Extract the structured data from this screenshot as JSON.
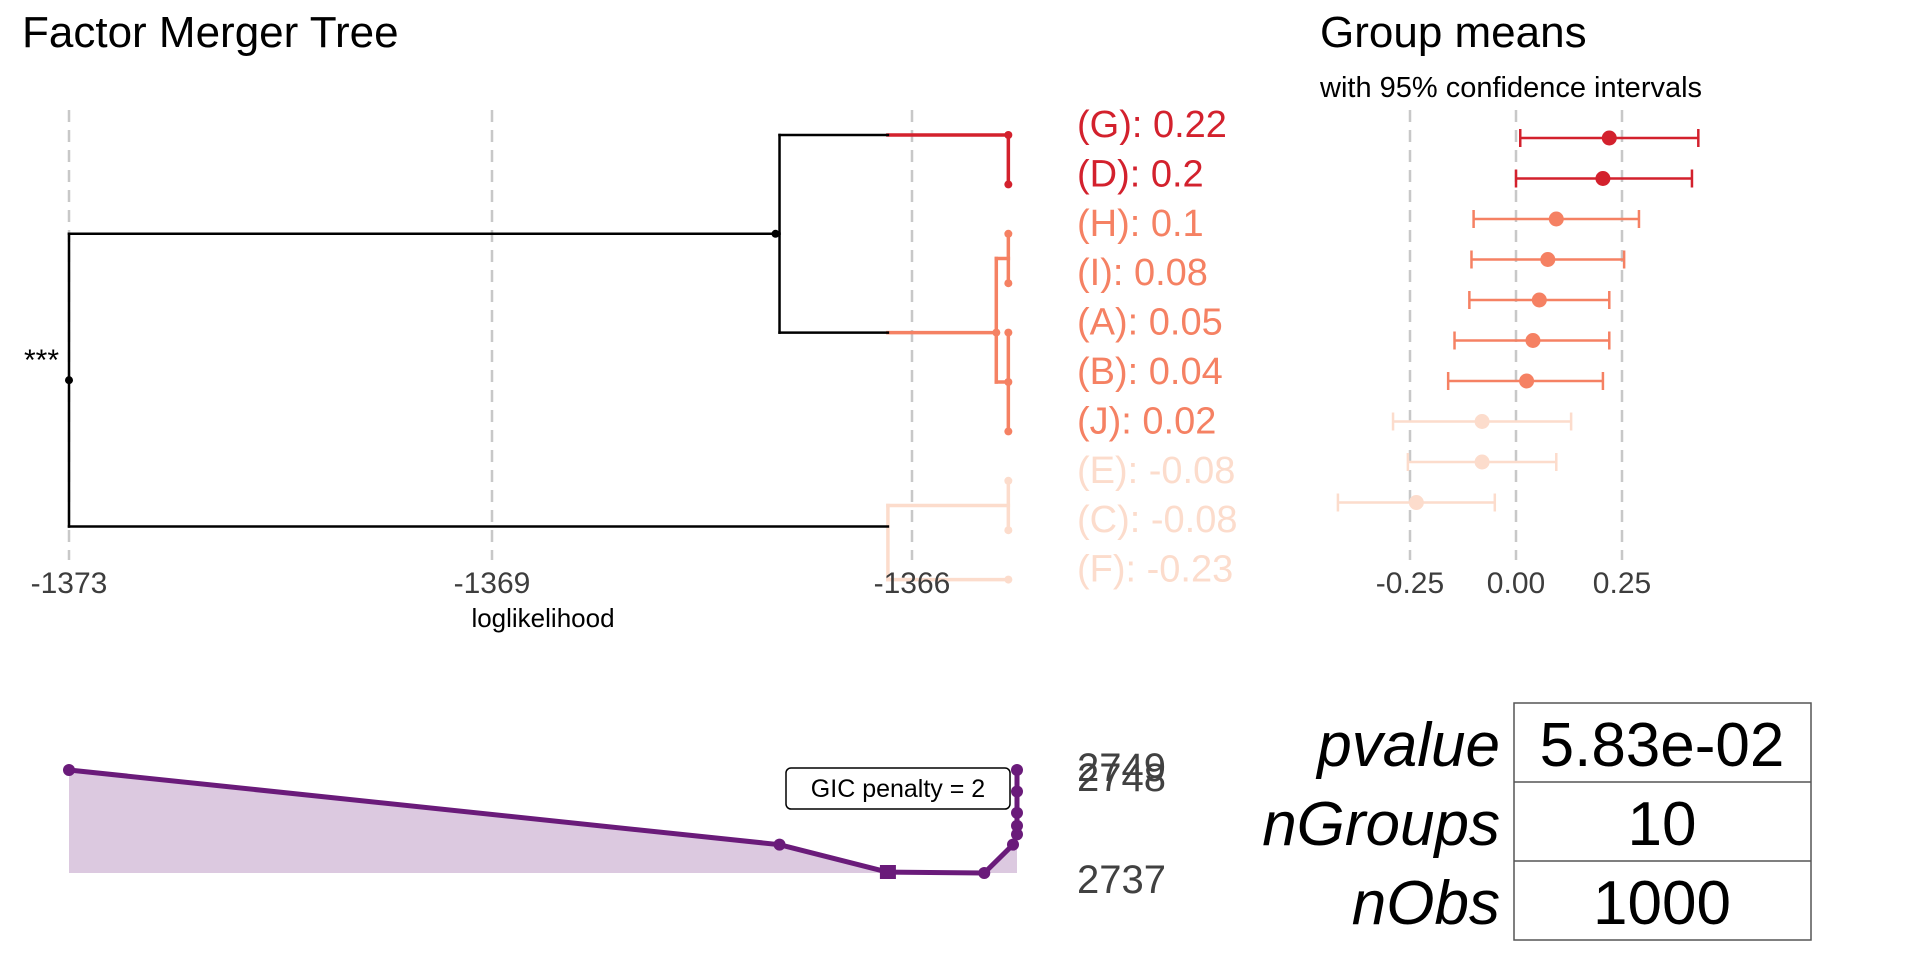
{
  "tree": {
    "title": "Factor Merger Tree",
    "x_axis_label": "loglikelihood",
    "x_ticks": [
      "-1373",
      "-1369",
      "-1366"
    ],
    "significance_marker": "***"
  },
  "means": {
    "title": "Group means",
    "subtitle": "with 95% confidence intervals",
    "x_ticks": [
      "-0.25",
      "0.00",
      "0.25"
    ]
  },
  "groups": [
    {
      "label": "(G): 0.22",
      "mean": 0.22,
      "lo": 0.01,
      "hi": 0.43,
      "cluster": 1
    },
    {
      "label": "(D): 0.2",
      "mean": 0.205,
      "lo": 0.0,
      "hi": 0.415,
      "cluster": 1
    },
    {
      "label": "(H): 0.1",
      "mean": 0.095,
      "lo": -0.1,
      "hi": 0.29,
      "cluster": 2
    },
    {
      "label": "(I): 0.08",
      "mean": 0.075,
      "lo": -0.105,
      "hi": 0.255,
      "cluster": 2
    },
    {
      "label": "(A): 0.05",
      "mean": 0.055,
      "lo": -0.11,
      "hi": 0.22,
      "cluster": 2
    },
    {
      "label": "(B): 0.04",
      "mean": 0.04,
      "lo": -0.145,
      "hi": 0.22,
      "cluster": 2
    },
    {
      "label": "(J): 0.02",
      "mean": 0.025,
      "lo": -0.16,
      "hi": 0.205,
      "cluster": 2
    },
    {
      "label": "(E): -0.08",
      "mean": -0.08,
      "lo": -0.29,
      "hi": 0.13,
      "cluster": 3
    },
    {
      "label": "(C): -0.08",
      "mean": -0.08,
      "lo": -0.255,
      "hi": 0.095,
      "cluster": 3
    },
    {
      "label": "(F): -0.23",
      "mean": -0.235,
      "lo": -0.42,
      "hi": -0.05,
      "cluster": 3
    }
  ],
  "cluster_colors": {
    "1": "#d3212d",
    "2": "#f58163",
    "3": "#fcdccc"
  },
  "criterion": {
    "labels": [
      "2749",
      "2748",
      "2737"
    ],
    "penalty_label": "GIC penalty = 2",
    "line_color": "#6a1b7a",
    "fill_color": "#dcc9e0"
  },
  "stats": [
    {
      "name": "pvalue",
      "value": "5.83e-02"
    },
    {
      "name": "nGroups",
      "value": "10"
    },
    {
      "name": "nObs",
      "value": "1000"
    }
  ],
  "chart_data": [
    {
      "type": "dendrogram",
      "title": "Factor Merger Tree",
      "xlabel": "loglikelihood",
      "x_ticks": [
        -1373,
        -1369,
        -1366
      ],
      "leaf_order": [
        "G",
        "D",
        "H",
        "I",
        "A",
        "B",
        "J",
        "E",
        "C",
        "F"
      ],
      "merges": [
        {
          "groups": [
            "G",
            "D"
          ],
          "loglik": -1365.2
        },
        {
          "groups": [
            "H",
            "I",
            "A",
            "B",
            "J"
          ],
          "loglik": -1365.4
        },
        {
          "groups": [
            "E",
            "C",
            "F"
          ],
          "loglik": -1366.2
        },
        {
          "groups": [
            "GD",
            "HIABJ"
          ],
          "loglik": -1367.1
        },
        {
          "groups": [
            "GDHIABJ",
            "ECF"
          ],
          "loglik": -1373.0
        }
      ]
    },
    {
      "type": "scatter",
      "title": "Group means",
      "subtitle": "with 95% confidence intervals",
      "categories": [
        "G",
        "D",
        "H",
        "I",
        "A",
        "B",
        "J",
        "E",
        "C",
        "F"
      ],
      "values": [
        0.22,
        0.205,
        0.095,
        0.075,
        0.055,
        0.04,
        0.025,
        -0.08,
        -0.08,
        -0.235
      ],
      "lower": [
        0.01,
        0.0,
        -0.1,
        -0.105,
        -0.11,
        -0.145,
        -0.16,
        -0.29,
        -0.255,
        -0.42
      ],
      "upper": [
        0.43,
        0.415,
        0.29,
        0.255,
        0.22,
        0.22,
        0.205,
        0.13,
        0.095,
        -0.05
      ],
      "x_ticks": [
        -0.25,
        0.0,
        0.25
      ]
    },
    {
      "type": "area",
      "x": [
        -1373.0,
        -1367.1,
        -1366.2,
        -1365.4,
        -1365.2,
        -1365.2,
        -1365.2,
        -1365.2,
        -1365.2,
        -1365.2
      ],
      "y": [
        2749,
        2740.3,
        2737.1,
        2737.0,
        2740.3,
        2741.5,
        2742.5,
        2744.0,
        2746.5,
        2749.0
      ],
      "labels": [
        "2749",
        "2748",
        "2737"
      ]
    }
  ]
}
